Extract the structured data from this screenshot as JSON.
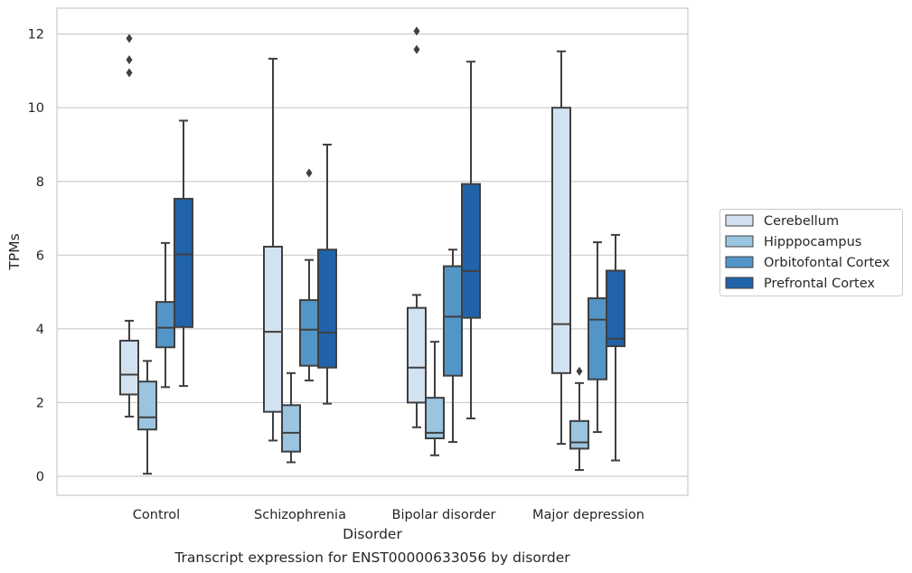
{
  "chart_data": {
    "type": "box",
    "title": "",
    "caption": "Transcript expression for ENST00000633056 by disorder",
    "xlabel": "Disorder",
    "ylabel": "TPMs",
    "ylim": [
      -0.5,
      12.7
    ],
    "yticks": [
      0,
      2,
      4,
      6,
      8,
      10,
      12
    ],
    "grid": "horizontal",
    "legend_position": "right",
    "categories": [
      "Control",
      "Schizophrenia",
      "Bipolar disorder",
      "Major depression"
    ],
    "series": [
      {
        "name": "Cerebellum",
        "color": "#d3e2f1",
        "boxes": [
          {
            "whislo": 1.62,
            "q1": 2.22,
            "med": 2.76,
            "q3": 3.68,
            "whishi": 4.22,
            "fliers": [
              10.95,
              11.3,
              11.88
            ]
          },
          {
            "whislo": 0.97,
            "q1": 1.75,
            "med": 3.92,
            "q3": 6.23,
            "whishi": 11.33,
            "fliers": []
          },
          {
            "whislo": 1.33,
            "q1": 2.0,
            "med": 2.95,
            "q3": 4.57,
            "whishi": 4.92,
            "fliers": [
              11.58,
              12.08
            ]
          },
          {
            "whislo": 0.88,
            "q1": 2.8,
            "med": 4.13,
            "q3": 10.0,
            "whishi": 11.53,
            "fliers": []
          }
        ]
      },
      {
        "name": "Hipppocampus",
        "color": "#9ac4df",
        "boxes": [
          {
            "whislo": 0.07,
            "q1": 1.27,
            "med": 1.6,
            "q3": 2.57,
            "whishi": 3.13,
            "fliers": []
          },
          {
            "whislo": 0.38,
            "q1": 0.67,
            "med": 1.18,
            "q3": 1.93,
            "whishi": 2.8,
            "fliers": []
          },
          {
            "whislo": 0.57,
            "q1": 1.03,
            "med": 1.18,
            "q3": 2.13,
            "whishi": 3.65,
            "fliers": []
          },
          {
            "whislo": 0.17,
            "q1": 0.75,
            "med": 0.92,
            "q3": 1.5,
            "whishi": 2.53,
            "fliers": [
              2.85
            ]
          }
        ]
      },
      {
        "name": "Orbitofontal Cortex",
        "color": "#5296c7",
        "boxes": [
          {
            "whislo": 2.42,
            "q1": 3.5,
            "med": 4.03,
            "q3": 4.73,
            "whishi": 6.33,
            "fliers": []
          },
          {
            "whislo": 2.6,
            "q1": 3.0,
            "med": 3.98,
            "q3": 4.78,
            "whishi": 5.87,
            "fliers": [
              8.23
            ]
          },
          {
            "whislo": 0.93,
            "q1": 2.73,
            "med": 4.33,
            "q3": 5.7,
            "whishi": 6.15,
            "fliers": []
          },
          {
            "whislo": 1.2,
            "q1": 2.63,
            "med": 4.25,
            "q3": 4.83,
            "whishi": 6.35,
            "fliers": []
          }
        ]
      },
      {
        "name": "Prefrontal Cortex",
        "color": "#2163a8",
        "boxes": [
          {
            "whislo": 2.45,
            "q1": 4.05,
            "med": 6.02,
            "q3": 7.53,
            "whishi": 9.65,
            "fliers": []
          },
          {
            "whislo": 1.97,
            "q1": 2.95,
            "med": 3.9,
            "q3": 6.15,
            "whishi": 9.0,
            "fliers": []
          },
          {
            "whislo": 1.57,
            "q1": 4.3,
            "med": 5.57,
            "q3": 7.93,
            "whishi": 11.25,
            "fliers": []
          },
          {
            "whislo": 0.43,
            "q1": 3.53,
            "med": 3.73,
            "q3": 5.58,
            "whishi": 6.55,
            "fliers": []
          }
        ]
      }
    ]
  },
  "colors": {
    "edge": "#3f3f3f",
    "grid": "#cccccc",
    "frame": "#cccccc"
  }
}
